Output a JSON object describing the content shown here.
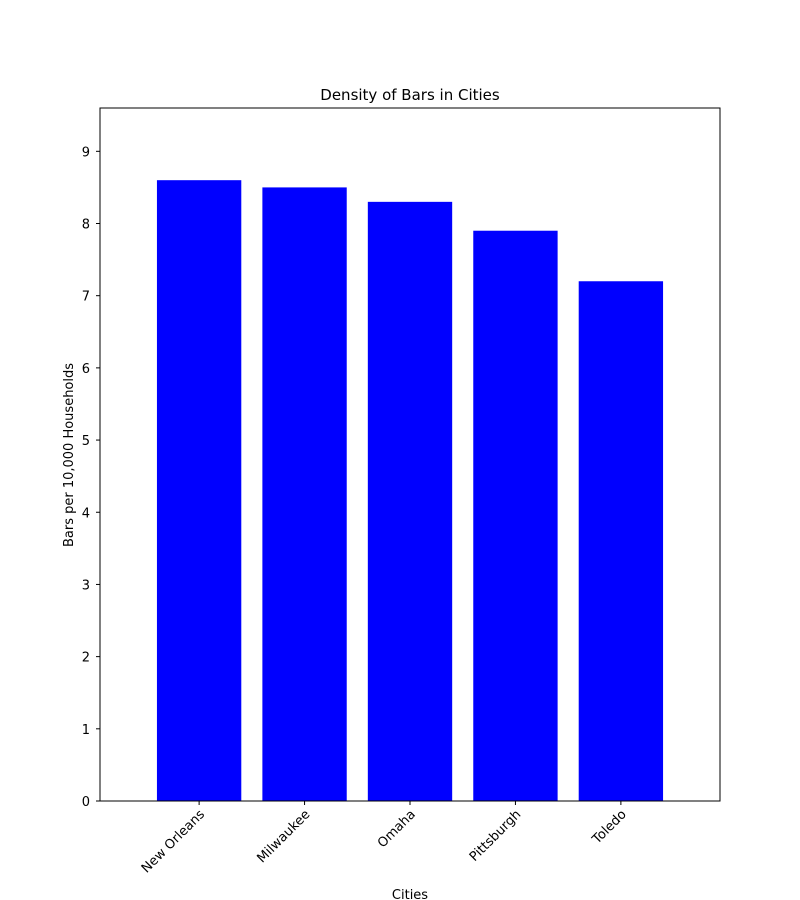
{
  "chart_data": {
    "type": "bar",
    "title": "Density of Bars in Cities",
    "xlabel": "Cities",
    "ylabel": "Bars per 10,000 Households",
    "categories": [
      "New Orleans",
      "Milwaukee",
      "Omaha",
      "Pittsburgh",
      "Toledo"
    ],
    "values": [
      8.6,
      8.5,
      8.3,
      7.9,
      7.2
    ],
    "ylim": [
      0,
      9.6
    ],
    "yticks": [
      0,
      1,
      2,
      3,
      4,
      5,
      6,
      7,
      8,
      9
    ],
    "bar_color": "#0000ff",
    "grid": false,
    "legend": "none"
  }
}
